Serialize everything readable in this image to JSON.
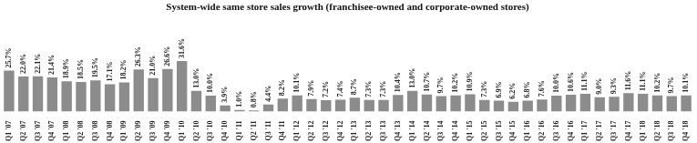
{
  "chart_data": {
    "type": "bar",
    "title": "System-wide same store sales growth (franchisee-owned and corporate-owned stores)",
    "categories": [
      "Q1 '07",
      "Q2 '07",
      "Q3 '07",
      "Q4 '07",
      "Q1 '08",
      "Q2 '08",
      "Q3 '08",
      "Q4 '08",
      "Q1 '09",
      "Q2 '09",
      "Q3 '09",
      "Q4 '09",
      "Q1 '10",
      "Q2 '10",
      "Q3 '10",
      "Q4 '10",
      "Q1 '11",
      "Q2 '11",
      "Q3 '11",
      "Q4 '11",
      "Q1 '12",
      "Q2 '12",
      "Q3 '12",
      "Q4 '12",
      "Q1 '13",
      "Q2 '13",
      "Q3 '13",
      "Q4 '13",
      "Q1 '14",
      "Q2 '14",
      "Q3 '14",
      "Q4 '14",
      "Q1 '15",
      "Q2 '15",
      "Q3 '15",
      "Q4 '15",
      "Q1 '16",
      "Q2 '16",
      "Q3 '16",
      "Q4 '16",
      "Q1 '17",
      "Q2 '17",
      "Q3 '17",
      "Q4 '17",
      "Q1 '18",
      "Q2 '18",
      "Q3 '18",
      "Q4 '18"
    ],
    "values": [
      25.7,
      22.0,
      22.1,
      21.4,
      18.9,
      18.5,
      19.5,
      17.1,
      18.2,
      26.3,
      21.0,
      26.6,
      31.6,
      13.0,
      10.0,
      3.9,
      1.0,
      0.8,
      4.4,
      8.2,
      10.1,
      7.9,
      7.2,
      7.4,
      8.7,
      7.3,
      7.3,
      10.4,
      13.0,
      10.7,
      9.7,
      10.2,
      10.9,
      7.3,
      6.9,
      6.2,
      6.8,
      7.6,
      10.0,
      10.6,
      11.1,
      9.0,
      9.3,
      11.6,
      11.1,
      10.2,
      9.7,
      10.1
    ],
    "value_labels": [
      "25.7%",
      "22.0%",
      "22.1%",
      "21.4%",
      "18.9%",
      "18.5%",
      "19.5%",
      "17.1%",
      "18.2%",
      "26.3%",
      "21.0%",
      "26.6%",
      "31.6%",
      "13.0%",
      "10.0%",
      "3.9%",
      "1.0%",
      "0.8%",
      "4.4%",
      "8.2%",
      "10.1%",
      "7.9%",
      "7.2%",
      "7.4%",
      "8.7%",
      "7.3%",
      "7.3%",
      "10.4%",
      "13.0%",
      "10.7%",
      "9.7%",
      "10.2%",
      "10.9%",
      "7.3%",
      "6.9%",
      "6.2%",
      "6.8%",
      "7.6%",
      "10.0%",
      "10.6%",
      "11.1%",
      "9.0%",
      "9.3%",
      "11.6%",
      "11.1%",
      "10.2%",
      "9.7%",
      "10.1%"
    ],
    "color": "#8c8c8c",
    "ylim": [
      0,
      60
    ],
    "grid": false,
    "data_labels": true,
    "tick_labels": "x"
  }
}
